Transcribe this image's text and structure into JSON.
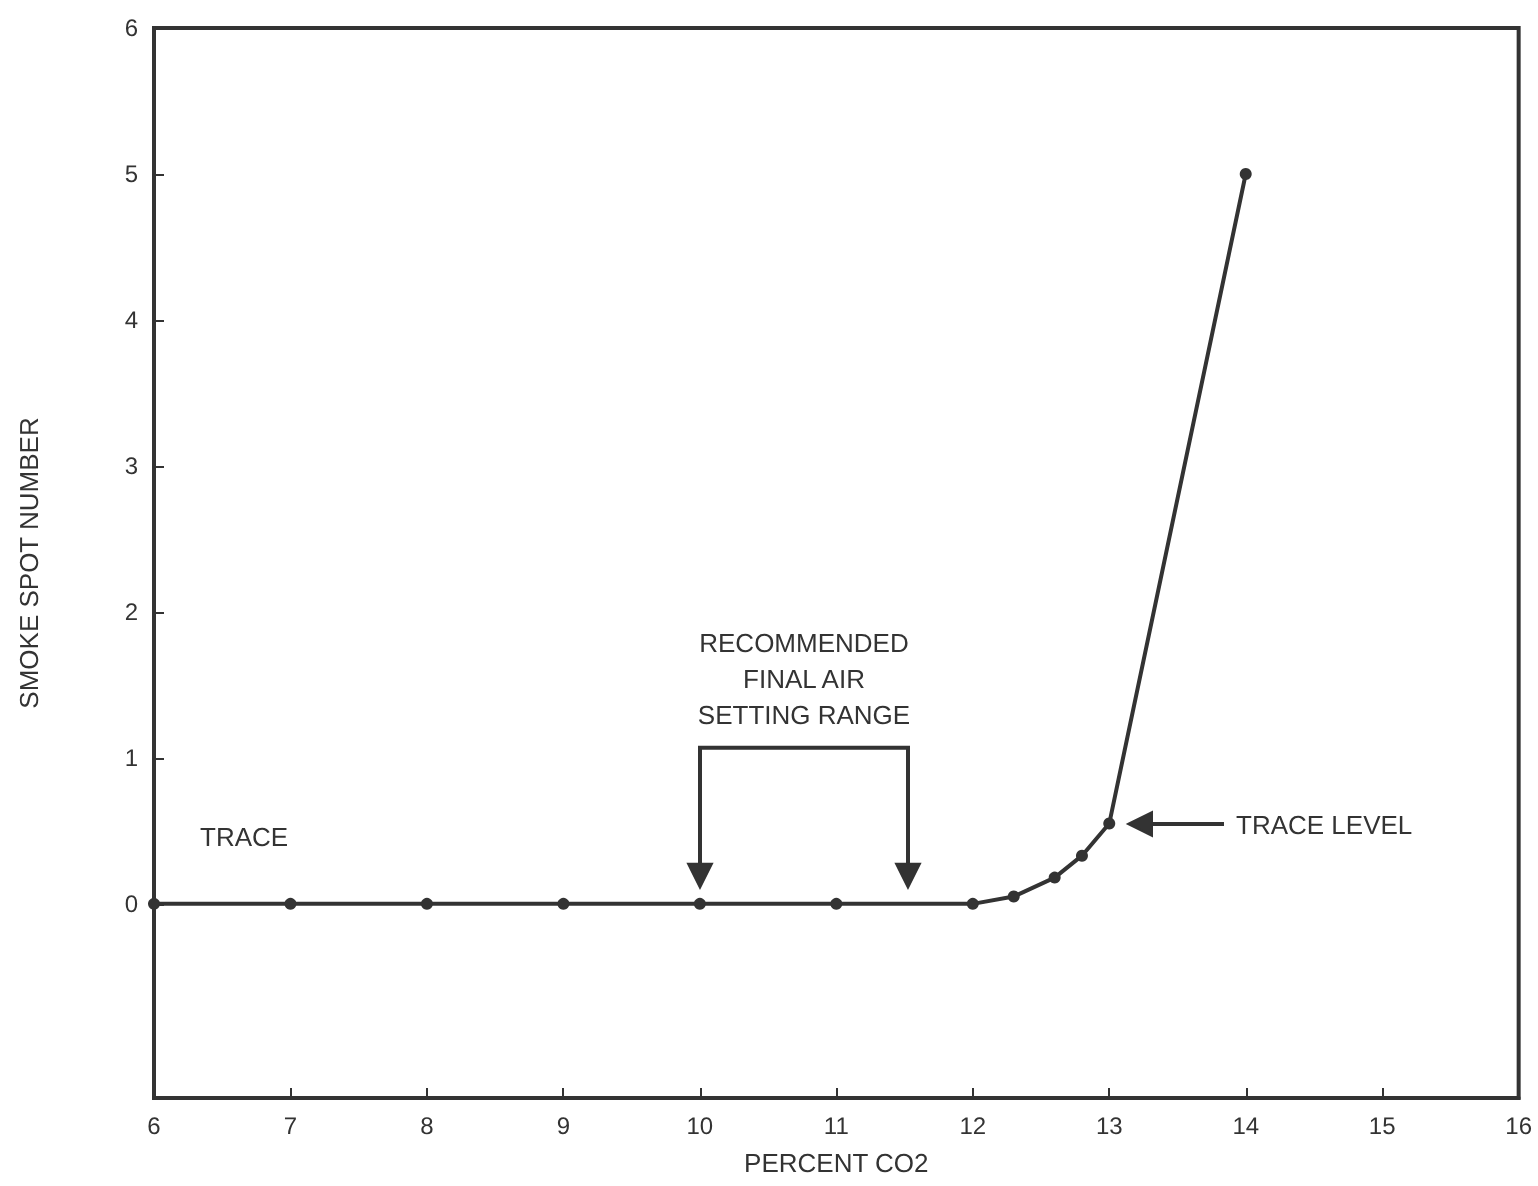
{
  "chart_data": {
    "type": "line",
    "xlabel": "PERCENT CO2",
    "ylabel": "SMOKE SPOT NUMBER",
    "x": [
      6,
      7,
      8,
      9,
      10,
      11,
      12,
      12.3,
      12.6,
      12.8,
      13,
      14
    ],
    "series": [
      {
        "color": "#333333",
        "values": [
          0,
          0,
          0,
          0,
          0,
          0,
          0,
          0.05,
          0.18,
          0.33,
          0.55,
          5
        ]
      }
    ],
    "xlim": [
      6,
      16
    ],
    "xticks": [
      6,
      7,
      8,
      9,
      10,
      11,
      12,
      13,
      14,
      15,
      16
    ],
    "ylim": [
      -1.33,
      6
    ],
    "yticks": [
      0,
      1,
      2,
      3,
      4,
      5,
      6
    ],
    "grid": false,
    "marker": "circle",
    "line_style": "solid",
    "annotations": [
      "TRACE",
      "TRACE LEVEL",
      "RECOMMENDED\nFINAL AIR\nSETTING RANGE"
    ]
  }
}
